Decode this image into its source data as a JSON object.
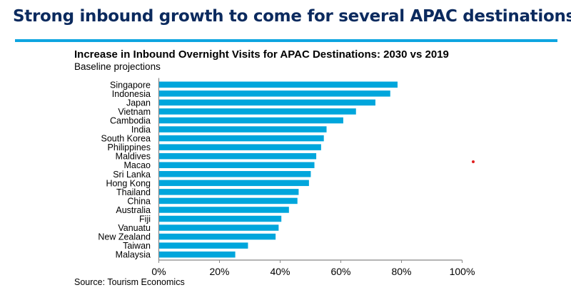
{
  "slide_title": "Strong inbound growth to come for several APAC destinations",
  "source": "Source: Tourism Economics",
  "colors": {
    "title": "#0b2a5e",
    "rule": "#0ea5e0",
    "bar": "#00a6dc"
  },
  "chart_data": {
    "type": "bar",
    "orientation": "horizontal",
    "title": "Increase in Inbound Overnight Visits for APAC Destinations: 2030 vs 2019",
    "subtitle": "Baseline projections",
    "categories": [
      "Singapore",
      "Indonesia",
      "Japan",
      "Vietnam",
      "Cambodia",
      "India",
      "South Korea",
      "Philippines",
      "Maldives",
      "Macao",
      "Sri Lanka",
      "Hong Kong",
      "Thailand",
      "China",
      "Australia",
      "Fiji",
      "Vanuatu",
      "New Zealand",
      "Taiwan",
      "Malaysia"
    ],
    "values": [
      78.7,
      76.3,
      71.4,
      65.0,
      60.8,
      55.3,
      54.4,
      53.5,
      51.9,
      51.3,
      50.1,
      49.5,
      46.1,
      45.7,
      42.9,
      40.4,
      39.5,
      38.5,
      29.4,
      25.2
    ],
    "unit": "%",
    "xlim": [
      0,
      100
    ],
    "xticks": [
      "0%",
      "20%",
      "40%",
      "60%",
      "80%",
      "100%"
    ],
    "grid": false,
    "legend": "none"
  }
}
